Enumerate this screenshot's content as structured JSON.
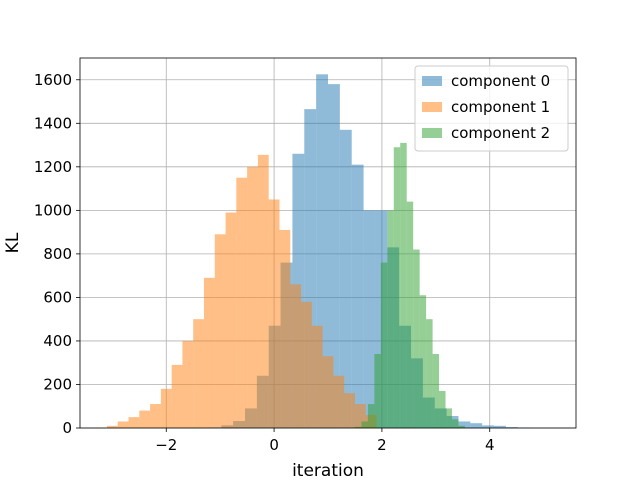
{
  "chart_data": {
    "type": "bar",
    "subtype": "overlapping histogram",
    "xlabel": "iteration",
    "ylabel": "KL",
    "xlim": [
      -3.6,
      5.6
    ],
    "ylim": [
      0,
      1700
    ],
    "xticks": [
      -2,
      0,
      2,
      4
    ],
    "xtick_labels": [
      "−2",
      "0",
      "2",
      "4"
    ],
    "yticks": [
      0,
      200,
      400,
      600,
      800,
      1000,
      1200,
      1400,
      1600
    ],
    "grid": true,
    "legend_position": "top-right",
    "bar_opacity": 0.5,
    "series": [
      {
        "name": "component 0",
        "color": "#1f77b4",
        "bin_edges": [
          -1.2,
          -0.98,
          -0.76,
          -0.54,
          -0.32,
          -0.1,
          0.12,
          0.34,
          0.56,
          0.78,
          1.0,
          1.22,
          1.44,
          1.66,
          1.88,
          2.1,
          2.32,
          2.54,
          2.76,
          2.98,
          3.2,
          3.42,
          3.64,
          3.86,
          4.08,
          4.3,
          4.52,
          4.74
        ],
        "values": [
          2,
          12,
          32,
          90,
          240,
          470,
          760,
          1260,
          1465,
          1625,
          1580,
          1370,
          1210,
          1000,
          1000,
          830,
          470,
          320,
          140,
          90,
          55,
          30,
          22,
          12,
          10,
          4,
          2
        ]
      },
      {
        "name": "component 1",
        "color": "#ff7f0e",
        "bin_edges": [
          -3.3,
          -3.1,
          -2.9,
          -2.7,
          -2.5,
          -2.3,
          -2.1,
          -1.9,
          -1.7,
          -1.5,
          -1.3,
          -1.1,
          -0.9,
          -0.7,
          -0.5,
          -0.3,
          -0.1,
          0.1,
          0.3,
          0.5,
          0.7,
          0.9,
          1.1,
          1.3,
          1.5,
          1.7,
          1.9
        ],
        "values": [
          2,
          10,
          30,
          50,
          80,
          110,
          180,
          290,
          400,
          500,
          690,
          890,
          990,
          1150,
          1200,
          1255,
          1050,
          910,
          660,
          580,
          470,
          330,
          240,
          160,
          110,
          60
        ]
      },
      {
        "name": "component 2",
        "color": "#2ca02c",
        "bin_edges": [
          1.5,
          1.62,
          1.74,
          1.86,
          1.98,
          2.1,
          2.22,
          2.34,
          2.46,
          2.58,
          2.7,
          2.82,
          2.94,
          3.06,
          3.18,
          3.3,
          3.42,
          3.54
        ],
        "values": [
          5,
          30,
          110,
          340,
          760,
          1000,
          1290,
          1310,
          1040,
          820,
          610,
          500,
          340,
          170,
          90,
          40,
          10
        ]
      }
    ]
  }
}
